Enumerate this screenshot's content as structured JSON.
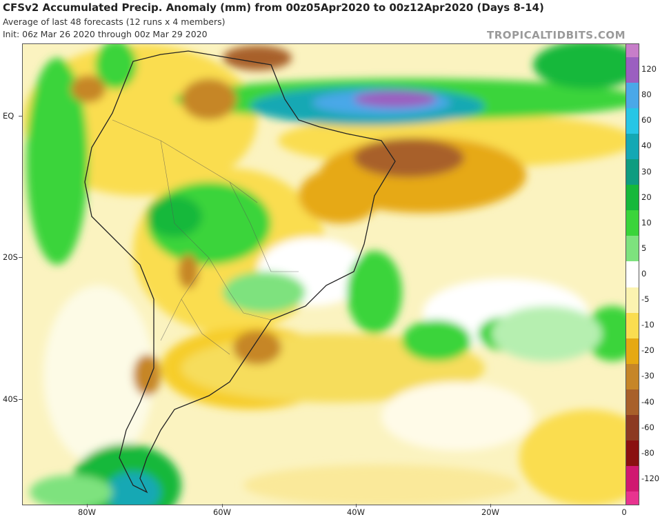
{
  "header": {
    "title": "CFSv2 Accumulated Precip. Anomaly (mm) from 00z05Apr2020 to 00z12Apr2020 (Days 8-14)",
    "subtitle": "Average of last 48 forecasts (12 runs x 4 members)",
    "init": "Init: 06z Mar 26 2020 through 00z Mar 29 2020",
    "brand": "TROPICALTIDBITS.COM"
  },
  "map": {
    "region": "South America and South Atlantic",
    "lat_labels": [
      "EQ",
      "20S",
      "40S"
    ],
    "lon_labels": [
      "80W",
      "60W",
      "40W",
      "20W",
      "0"
    ]
  },
  "colorbar": {
    "levels": [
      {
        "label": "120",
        "color": "#9b5fc0"
      },
      {
        "label": "80",
        "color": "#4aa8e8"
      },
      {
        "label": "60",
        "color": "#27c6e6"
      },
      {
        "label": "40",
        "color": "#14a8b4"
      },
      {
        "label": "30",
        "color": "#0e9c80"
      },
      {
        "label": "20",
        "color": "#16b83a"
      },
      {
        "label": "10",
        "color": "#3ad43a"
      },
      {
        "label": "5",
        "color": "#7ee27e"
      },
      {
        "label": "0",
        "color": "#ffffff"
      },
      {
        "label": "-5",
        "color": "#fbf3b0"
      },
      {
        "label": "-10",
        "color": "#fadd50"
      },
      {
        "label": "-20",
        "color": "#e6a912"
      },
      {
        "label": "-30",
        "color": "#c68628"
      },
      {
        "label": "-40",
        "color": "#a8602a"
      },
      {
        "label": "-60",
        "color": "#8c3a22"
      },
      {
        "label": "-80",
        "color": "#8a1010"
      },
      {
        "label": "-120",
        "color": "#d01870"
      }
    ],
    "top_color": "#c77ec9",
    "bottom_color": "#e8338f"
  }
}
